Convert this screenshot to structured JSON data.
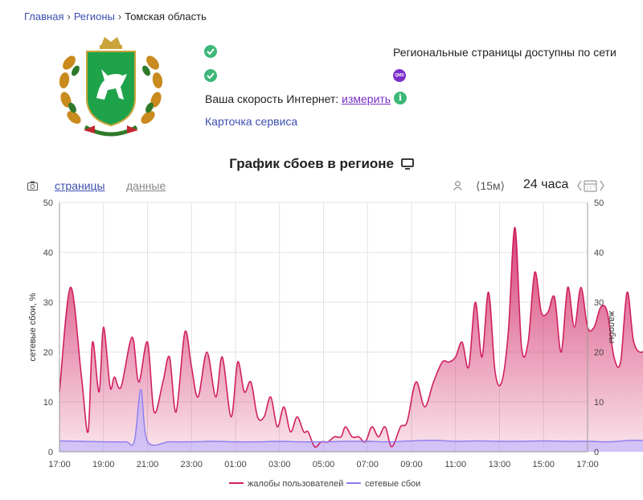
{
  "breadcrumb": {
    "home": "Главная",
    "regions": "Регионы",
    "current": "Томская область"
  },
  "status": {
    "availability_text": "Региональные страницы доступны по сети",
    "qms_badge": "QMS",
    "speed_label": "Ваша скорость Интернет:",
    "speed_link": "измерить",
    "service_card": "Карточка сервиса"
  },
  "chart_header": {
    "title": "График сбоев в регионе",
    "tab_pages": "страницы",
    "tab_data": "данные",
    "interval": "⟨15м⟩",
    "period": "24 часа"
  },
  "icons": [
    "check-icon",
    "qms-icon",
    "info-icon",
    "monitor-icon",
    "camera-icon",
    "user-icon",
    "calendar-icon"
  ],
  "colors": {
    "complaints": "#d0205f",
    "outages": "#8b7cf0",
    "link": "#3d4fb0",
    "accent": "#7b2fc9",
    "ok": "#3cb878"
  },
  "chart_data": {
    "type": "area",
    "x_ticks": [
      "17:00",
      "19:00",
      "21:00",
      "23:00",
      "01:00",
      "03:00",
      "05:00",
      "07:00",
      "09:00",
      "11:00",
      "13:00",
      "15:00",
      "17:00"
    ],
    "x_range_hours": [
      0,
      24
    ],
    "ylabel_left": "сетевые сбои, %",
    "ylabel_right": "жалобы",
    "ylim": [
      0,
      50
    ],
    "y_ticks": [
      0,
      10,
      20,
      30,
      40,
      50
    ],
    "grid": true,
    "legend_position": "bottom",
    "series": [
      {
        "name": "жалобы пользователей",
        "color": "#d0205f",
        "points": [
          [
            0,
            12
          ],
          [
            0.5,
            33
          ],
          [
            1,
            15
          ],
          [
            1.3,
            4
          ],
          [
            1.5,
            22
          ],
          [
            1.8,
            12
          ],
          [
            2,
            25
          ],
          [
            2.3,
            13
          ],
          [
            2.5,
            15
          ],
          [
            2.8,
            13
          ],
          [
            3.3,
            23
          ],
          [
            3.6,
            14
          ],
          [
            4,
            22
          ],
          [
            4.3,
            8
          ],
          [
            4.7,
            14
          ],
          [
            5,
            19
          ],
          [
            5.3,
            8
          ],
          [
            5.7,
            24
          ],
          [
            6,
            17
          ],
          [
            6.3,
            11
          ],
          [
            6.7,
            20
          ],
          [
            7.1,
            11
          ],
          [
            7.4,
            19
          ],
          [
            7.8,
            7
          ],
          [
            8.1,
            18
          ],
          [
            8.4,
            12
          ],
          [
            8.7,
            14
          ],
          [
            9,
            7
          ],
          [
            9.3,
            7
          ],
          [
            9.6,
            11
          ],
          [
            9.9,
            5
          ],
          [
            10.2,
            9
          ],
          [
            10.5,
            4
          ],
          [
            10.8,
            7
          ],
          [
            11.1,
            4
          ],
          [
            11.3,
            4
          ],
          [
            11.6,
            1
          ],
          [
            11.9,
            2
          ],
          [
            12.2,
            2
          ],
          [
            12.5,
            3
          ],
          [
            12.8,
            3
          ],
          [
            13,
            5
          ],
          [
            13.3,
            3
          ],
          [
            13.6,
            3
          ],
          [
            13.9,
            2
          ],
          [
            14.2,
            5
          ],
          [
            14.5,
            3
          ],
          [
            14.8,
            5
          ],
          [
            15.1,
            1
          ],
          [
            15.5,
            5
          ],
          [
            15.8,
            6
          ],
          [
            16.2,
            14
          ],
          [
            16.6,
            9
          ],
          [
            17,
            14
          ],
          [
            17.4,
            18
          ],
          [
            17.7,
            18
          ],
          [
            18,
            19
          ],
          [
            18.3,
            22
          ],
          [
            18.6,
            17
          ],
          [
            18.9,
            30
          ],
          [
            19.2,
            19
          ],
          [
            19.5,
            32
          ],
          [
            19.8,
            16
          ],
          [
            20.1,
            14
          ],
          [
            20.4,
            24
          ],
          [
            20.7,
            45
          ],
          [
            21,
            21
          ],
          [
            21.3,
            22
          ],
          [
            21.6,
            36
          ],
          [
            21.9,
            28
          ],
          [
            22.2,
            28
          ],
          [
            22.5,
            31
          ],
          [
            22.8,
            20
          ],
          [
            23.1,
            33
          ],
          [
            23.4,
            25
          ],
          [
            23.7,
            33
          ],
          [
            24,
            25
          ],
          [
            24.3,
            25
          ],
          [
            24.6,
            29
          ],
          [
            24.9,
            28
          ],
          [
            25.2,
            19
          ],
          [
            25.5,
            18
          ],
          [
            25.8,
            32
          ],
          [
            26.1,
            22
          ],
          [
            26.5,
            20
          ],
          [
            26.8,
            23
          ],
          [
            27.1,
            18
          ],
          [
            27.4,
            17
          ]
        ]
      },
      {
        "name": "сетевые сбои",
        "color": "#8b7cf0",
        "points": [
          [
            0,
            2.2
          ],
          [
            1,
            2.1
          ],
          [
            2,
            2.0
          ],
          [
            3,
            2.0
          ],
          [
            3.4,
            2.1
          ],
          [
            3.7,
            12.5
          ],
          [
            4,
            2.1
          ],
          [
            5,
            2.0
          ],
          [
            6,
            2.0
          ],
          [
            7,
            2.1
          ],
          [
            8,
            2.0
          ],
          [
            9,
            2.0
          ],
          [
            10,
            2.1
          ],
          [
            11,
            2.0
          ],
          [
            12,
            2.0
          ],
          [
            13,
            2.1
          ],
          [
            14,
            2.1
          ],
          [
            15,
            2.0
          ],
          [
            16,
            2.2
          ],
          [
            17,
            2.3
          ],
          [
            18,
            2.1
          ],
          [
            19,
            2.2
          ],
          [
            20,
            2.1
          ],
          [
            21,
            2.1
          ],
          [
            22,
            2.2
          ],
          [
            23,
            2.1
          ],
          [
            24,
            2.1
          ],
          [
            25,
            2.0
          ],
          [
            26,
            2.3
          ],
          [
            27,
            2.2
          ],
          [
            27.4,
            2.2
          ]
        ]
      }
    ]
  }
}
